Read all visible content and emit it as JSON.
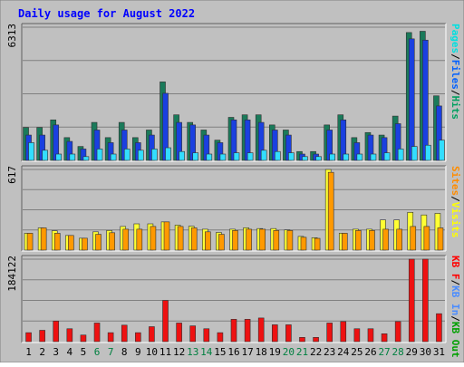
{
  "chart_data": {
    "type": "bar",
    "title": "Daily usage for August 2022",
    "categories": [
      "1",
      "2",
      "3",
      "4",
      "5",
      "6",
      "7",
      "8",
      "9",
      "10",
      "11",
      "12",
      "13",
      "14",
      "15",
      "16",
      "17",
      "18",
      "19",
      "20",
      "21",
      "22",
      "23",
      "24",
      "25",
      "26",
      "27",
      "28",
      "29",
      "30",
      "31"
    ],
    "weekend_days": [
      6,
      7,
      13,
      14,
      20,
      21,
      27,
      28
    ],
    "panels": [
      {
        "name": "hits-files-pages",
        "ymax_label": "6313",
        "ymax": 6313,
        "right_label": [
          "Pages",
          "/",
          "Files",
          "/",
          "Hits"
        ],
        "right_label_colors": [
          "#00e0e0",
          "#000000",
          "#0060ff",
          "#000000",
          "#00a060"
        ],
        "series": [
          {
            "name": "Hits",
            "color": "#1a7a5a",
            "values": [
              1560,
              1560,
              1920,
              1080,
              660,
              1800,
              1080,
              1800,
              1080,
              1440,
              3720,
              2160,
              1800,
              1440,
              960,
              2040,
              2160,
              2160,
              1680,
              1440,
              420,
              420,
              1680,
              2160,
              1080,
              1320,
              1200,
              2100,
              6060,
              6120,
              3060
            ]
          },
          {
            "name": "Files",
            "color": "#1a40e0",
            "values": [
              1200,
              1200,
              1680,
              900,
              540,
              1440,
              840,
              1440,
              840,
              1200,
              3180,
              1800,
              1680,
              1200,
              840,
              1920,
              1920,
              1800,
              1440,
              1200,
              300,
              300,
              1440,
              1920,
              840,
              1200,
              1080,
              1740,
              5760,
              5700,
              2580
            ]
          },
          {
            "name": "Pages",
            "color": "#33ddff",
            "values": [
              840,
              480,
              300,
              300,
              180,
              540,
              300,
              540,
              480,
              540,
              600,
              420,
              360,
              300,
              300,
              360,
              360,
              480,
              420,
              360,
              180,
              180,
              300,
              300,
              300,
              300,
              360,
              540,
              660,
              720,
              960
            ]
          }
        ]
      },
      {
        "name": "visits-sites",
        "ymax_label": "617",
        "ymax": 617,
        "right_label": [
          "Sites",
          "/",
          "Visits"
        ],
        "right_label_colors": [
          "#ff8c00",
          "#000000",
          "#ffff00"
        ],
        "series": [
          {
            "name": "Visits",
            "color": "#ffff33",
            "values": [
              129,
              170,
              148,
              112,
              91,
              140,
              150,
              181,
              201,
              201,
              216,
              191,
              183,
              160,
              135,
              160,
              171,
              165,
              165,
              155,
              105,
              95,
              617,
              129,
              160,
              160,
              231,
              231,
              289,
              269,
              281
            ]
          },
          {
            "name": "Sites",
            "color": "#ff9900",
            "values": [
              129,
              170,
              129,
              112,
              91,
              121,
              133,
              160,
              160,
              181,
              216,
              181,
              170,
              140,
              121,
              150,
              160,
              160,
              150,
              150,
              98,
              90,
              595,
              129,
              150,
              150,
              160,
              160,
              181,
              181,
              170
            ]
          }
        ]
      },
      {
        "name": "traffic",
        "ymax_label": "184122",
        "ymax": 184122,
        "right_label": [
          "KB F",
          "/",
          "KB In",
          "/",
          "KB Out"
        ],
        "right_label_colors": [
          "#ff0000",
          "#000000",
          "#4a8cff",
          "#000000",
          "#00a000"
        ],
        "series": [
          {
            "name": "KB F",
            "color": "#ee1111",
            "values": [
              20000,
              25300,
              46000,
              28800,
              14700,
              41600,
              20000,
              36800,
              20000,
              33400,
              92000,
              41600,
              35200,
              28800,
              20000,
              49900,
              49900,
              52800,
              37600,
              37600,
              9500,
              9500,
              41600,
              44800,
              28800,
              28800,
              17600,
              44800,
              184122,
              184122,
              62400
            ]
          }
        ]
      }
    ],
    "grid": true,
    "legend": "right"
  }
}
